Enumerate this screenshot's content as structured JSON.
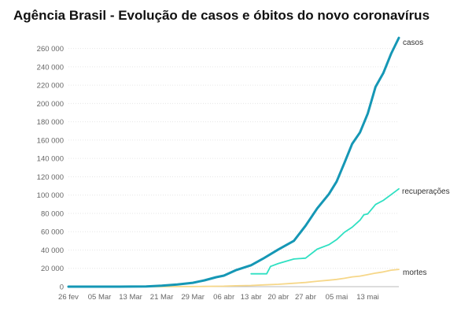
{
  "title": "Agência Brasil - Evolução de casos e óbitos do novo coronavírus",
  "colors": {
    "casos": "#1597b5",
    "recuperacoes": "#2fe0c2",
    "mortes": "#f6d789"
  },
  "chart_data": {
    "type": "line",
    "title": "Agência Brasil - Evolução de casos e óbitos do novo coronavírus",
    "x_tick_labels": [
      "26 fev",
      "05 Mar",
      "13 Mar",
      "21 Mar",
      "29 Mar",
      "06 abr",
      "13 abr",
      "20 abr",
      "27 abr",
      "05 mai",
      "13 mai"
    ],
    "y_tick_labels": [
      "0",
      "20 000",
      "40 000",
      "60 000",
      "80 000",
      "100 000",
      "120 000",
      "140 000",
      "160 000",
      "180 000",
      "200 000",
      "220 000",
      "240 000",
      "260 000"
    ],
    "ylim": [
      0,
      270000
    ],
    "grid": true,
    "series": [
      {
        "name": "casos",
        "color": "#1597b5",
        "x": [
          "2020-02-26",
          "2020-03-01",
          "2020-03-05",
          "2020-03-10",
          "2020-03-13",
          "2020-03-17",
          "2020-03-21",
          "2020-03-25",
          "2020-03-29",
          "2020-04-01",
          "2020-04-04",
          "2020-04-06",
          "2020-04-09",
          "2020-04-13",
          "2020-04-16",
          "2020-04-20",
          "2020-04-24",
          "2020-04-27",
          "2020-04-30",
          "2020-05-03",
          "2020-05-05",
          "2020-05-07",
          "2020-05-09",
          "2020-05-11",
          "2020-05-13",
          "2020-05-15",
          "2020-05-17",
          "2020-05-19",
          "2020-05-21"
        ],
        "values": [
          1,
          2,
          8,
          34,
          98,
          291,
          1128,
          2433,
          4256,
          6836,
          10278,
          12056,
          17857,
          23430,
          30425,
          40581,
          50036,
          66501,
          85380,
          101147,
          114715,
          135106,
          155939,
          168331,
          188974,
          218223,
          233142,
          254220,
          271628
        ]
      },
      {
        "name": "recuperações",
        "color": "#2fe0c2",
        "x": [
          "2020-04-13",
          "2020-04-16",
          "2020-04-17",
          "2020-04-18",
          "2020-04-20",
          "2020-04-24",
          "2020-04-27",
          "2020-04-30",
          "2020-05-03",
          "2020-05-05",
          "2020-05-07",
          "2020-05-09",
          "2020-05-11",
          "2020-05-12",
          "2020-05-13",
          "2020-05-15",
          "2020-05-17",
          "2020-05-19",
          "2020-05-21"
        ],
        "values": [
          14000,
          14000,
          14000,
          22130,
          25318,
          30152,
          31142,
          40937,
          45815,
          51370,
          59297,
          64957,
          72597,
          78424,
          79479,
          89672,
          94122,
          100459,
          106794
        ]
      },
      {
        "name": "mortes",
        "color": "#f6d789",
        "x": [
          "2020-02-26",
          "2020-03-17",
          "2020-03-21",
          "2020-03-25",
          "2020-03-29",
          "2020-04-01",
          "2020-04-04",
          "2020-04-06",
          "2020-04-09",
          "2020-04-13",
          "2020-04-16",
          "2020-04-20",
          "2020-04-24",
          "2020-04-27",
          "2020-04-30",
          "2020-05-03",
          "2020-05-05",
          "2020-05-07",
          "2020-05-09",
          "2020-05-11",
          "2020-05-13",
          "2020-05-15",
          "2020-05-17",
          "2020-05-19",
          "2020-05-21"
        ],
        "values": [
          0,
          1,
          18,
          59,
          136,
          241,
          432,
          553,
          941,
          1328,
          1924,
          2575,
          3670,
          4543,
          5901,
          7025,
          7921,
          9146,
          10627,
          11519,
          13149,
          14817,
          16118,
          17971,
          18859
        ]
      }
    ]
  }
}
